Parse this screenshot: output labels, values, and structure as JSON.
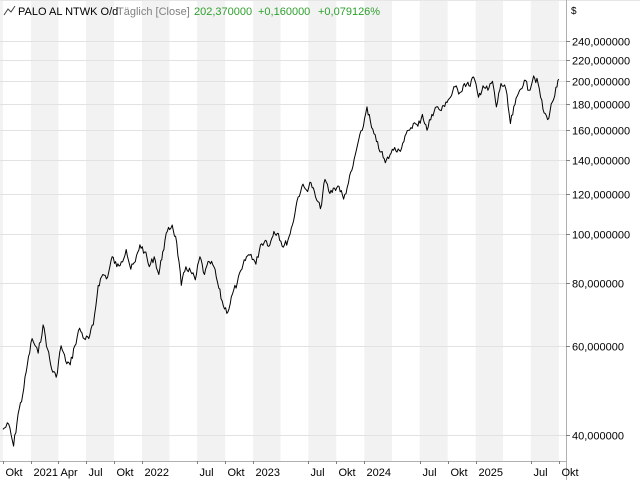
{
  "header": {
    "icon": "line-chart-icon",
    "symbol": "PALO AL NTWK O/d",
    "interval": "Täglich [Close]",
    "last_price": "202,370000",
    "change_abs": "+0,160000",
    "change_pct": "+0,079126%",
    "currency": "$"
  },
  "colors": {
    "up": "#2ea02e",
    "label_gray": "#808080",
    "line": "#000000",
    "band": "#f2f2f2"
  },
  "chart_data": {
    "type": "line",
    "title": "PALO AL NTWK O/d",
    "xlabel": "",
    "ylabel": "",
    "y_scale": "log",
    "ylim": [
      36,
      262
    ],
    "grid": true,
    "x_ticks": [
      "Okt",
      "2021",
      "Apr",
      "Jul",
      "Okt",
      "2022",
      "Jul",
      "Okt",
      "2023",
      "Jul",
      "Okt",
      "2024",
      "Jul",
      "Okt",
      "2025",
      "Jul",
      "Okt"
    ],
    "y_ticks": [
      "40,000000",
      "60,000000",
      "80,000000",
      "100,000000",
      "120,000000",
      "140,000000",
      "160,000000",
      "180,000000",
      "200,000000",
      "220,000000",
      "240,000000"
    ],
    "y_tick_values": [
      40,
      60,
      80,
      100,
      120,
      140,
      160,
      180,
      200,
      220,
      240
    ],
    "series": [
      {
        "x": [
          "2020-10-01",
          "2020-10-20",
          "2020-11-05",
          "2020-11-20",
          "2020-12-05",
          "2020-12-20",
          "2021-01-05",
          "2021-01-25",
          "2021-02-10",
          "2021-02-25",
          "2021-03-10",
          "2021-03-25",
          "2021-04-10",
          "2021-04-25",
          "2021-05-10",
          "2021-05-25",
          "2021-06-10",
          "2021-06-25",
          "2021-07-10",
          "2021-07-25",
          "2021-08-10",
          "2021-08-25",
          "2021-09-10",
          "2021-09-25",
          "2021-10-10",
          "2021-10-25",
          "2021-11-10",
          "2021-11-25",
          "2021-12-10",
          "2021-12-25",
          "2022-01-10",
          "2022-01-25",
          "2022-02-10",
          "2022-02-25",
          "2022-03-10",
          "2022-03-25",
          "2022-04-10",
          "2022-04-25",
          "2022-05-10",
          "2022-05-25",
          "2022-06-10",
          "2022-06-25",
          "2022-07-10",
          "2022-07-25",
          "2022-08-10",
          "2022-08-25",
          "2022-09-10",
          "2022-09-25",
          "2022-10-10",
          "2022-10-25",
          "2022-11-10",
          "2022-11-25",
          "2022-12-10",
          "2022-12-25",
          "2023-01-10",
          "2023-01-25",
          "2023-02-10",
          "2023-02-25",
          "2023-03-10",
          "2023-03-25",
          "2023-04-10",
          "2023-04-25",
          "2023-05-10",
          "2023-05-25",
          "2023-06-10",
          "2023-06-25",
          "2023-07-10",
          "2023-07-25",
          "2023-08-10",
          "2023-08-25",
          "2023-09-10",
          "2023-09-25",
          "2023-10-10",
          "2023-10-25",
          "2023-11-10",
          "2023-11-25",
          "2023-12-10",
          "2023-12-25",
          "2024-01-10",
          "2024-01-25",
          "2024-02-10",
          "2024-02-25",
          "2024-03-10",
          "2024-03-25",
          "2024-04-10",
          "2024-04-25",
          "2024-05-10",
          "2024-05-25",
          "2024-06-10",
          "2024-06-25",
          "2024-07-10",
          "2024-07-25",
          "2024-08-10",
          "2024-08-25",
          "2024-09-10",
          "2024-09-25",
          "2024-10-10",
          "2024-10-25",
          "2024-11-10",
          "2024-11-25",
          "2024-12-10",
          "2024-12-25",
          "2025-01-10",
          "2025-01-25",
          "2025-02-10",
          "2025-02-25",
          "2025-03-10",
          "2025-03-25",
          "2025-04-10",
          "2025-04-25",
          "2025-05-10",
          "2025-05-25",
          "2025-06-10",
          "2025-06-25",
          "2025-07-10",
          "2025-07-25",
          "2025-08-10",
          "2025-08-25",
          "2025-09-10",
          "2025-09-25",
          "2025-10-01"
        ],
        "y": [
          41,
          42,
          38,
          44,
          48,
          55,
          62,
          58,
          66,
          59,
          54,
          52,
          60,
          56,
          55,
          60,
          65,
          62,
          62,
          66,
          79,
          83,
          82,
          90,
          86,
          88,
          93,
          85,
          88,
          95,
          92,
          86,
          90,
          83,
          92,
          101,
          104,
          96,
          79,
          86,
          84,
          81,
          90,
          83,
          88,
          86,
          78,
          72,
          70,
          76,
          80,
          85,
          90,
          91,
          87,
          95,
          97,
          95,
          101,
          100,
          94,
          97,
          104,
          116,
          124,
          122,
          126,
          118,
          112,
          128,
          120,
          123,
          124,
          117,
          126,
          136,
          150,
          160,
          178,
          162,
          152,
          145,
          138,
          143,
          148,
          146,
          152,
          160,
          165,
          163,
          172,
          160,
          172,
          178,
          175,
          182,
          186,
          195,
          190,
          198,
          196,
          204,
          186,
          196,
          192,
          200,
          178,
          198,
          193,
          165,
          180,
          192,
          201,
          192,
          205,
          198,
          176,
          168,
          182,
          195,
          202
        ]
      }
    ]
  }
}
